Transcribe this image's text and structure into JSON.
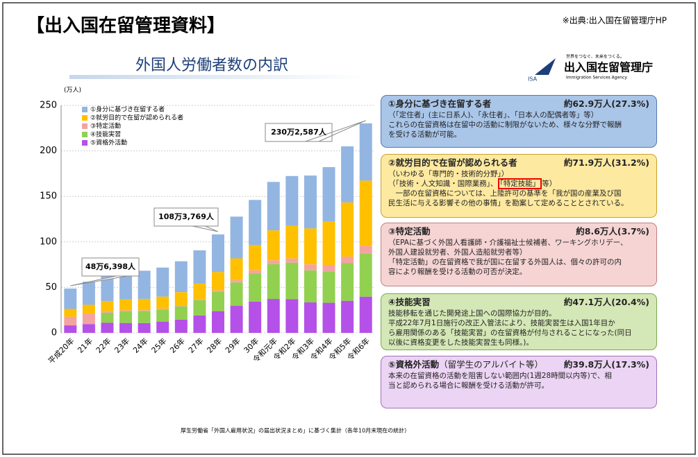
{
  "header": {
    "title": "【出入国在留管理資料】",
    "source": "※出典:出入国在留管理庁HP"
  },
  "slide": {
    "title": "外国人労働者数の内訳",
    "logo_tagline": "世界をつなぐ、未来をつくる。",
    "logo_mark": "ISA",
    "logo_name": "出入国在留管理庁",
    "logo_english": "Immigration Services Agency",
    "footnote": "厚生労働省「外国人雇用状況」の届出状況まとめ」に基づく集計（各年10月末現在の統計）"
  },
  "chart_data": {
    "type": "bar",
    "stacked": true,
    "y_unit": "(万人)",
    "categories": [
      "平成20年",
      "21年",
      "22年",
      "23年",
      "24年",
      "25年",
      "26年",
      "27年",
      "28年",
      "29年",
      "30年",
      "令和元年",
      "令和2年",
      "令和3年",
      "令和4年",
      "令和5年",
      "令和6年"
    ],
    "series": [
      {
        "name": "①身分に基づき在留する者",
        "color": "#93b5e1",
        "values": [
          22.4,
          25.3,
          29.7,
          31.0,
          30.9,
          31.9,
          33.9,
          36.7,
          41.3,
          45.9,
          49.6,
          53.2,
          54.6,
          58.1,
          59.5,
          61.6,
          62.9
        ]
      },
      {
        "name": "②就労目的で在留が認められる者",
        "color": "#ffc000",
        "values": [
          8.5,
          10.0,
          11.1,
          12.1,
          12.4,
          13.3,
          14.7,
          16.7,
          20.1,
          23.8,
          27.7,
          32.9,
          36.0,
          39.5,
          48.0,
          59.6,
          71.9
        ]
      },
      {
        "name": "③特定活動",
        "color": "#f4a3a3",
        "values": [
          9.5,
          11.2,
          1.7,
          0.9,
          0.8,
          0.8,
          0.9,
          1.3,
          1.8,
          2.6,
          3.6,
          4.1,
          4.6,
          6.6,
          7.3,
          7.2,
          8.6
        ]
      },
      {
        "name": "④技能実習",
        "color": "#92d050",
        "values": [
          0,
          0,
          11.1,
          13.0,
          13.4,
          13.6,
          14.6,
          16.8,
          21.1,
          25.8,
          30.8,
          38.4,
          40.2,
          35.2,
          34.3,
          41.3,
          47.1
        ]
      },
      {
        "name": "⑤資格外活動",
        "color": "#b550e8",
        "values": [
          8.3,
          9.7,
          11.1,
          10.9,
          10.8,
          12.2,
          14.6,
          19.2,
          23.9,
          29.7,
          34.4,
          37.3,
          37.0,
          33.5,
          33.1,
          35.3,
          39.8
        ]
      }
    ],
    "ylim": [
      0,
      250
    ],
    "yticks": [
      0,
      50,
      100,
      150,
      200,
      250
    ],
    "legend": "top-left",
    "annotations": [
      "48万6,398人",
      "108万3,769人",
      "230万2,587人"
    ]
  },
  "boxes": [
    {
      "title": "①身分に基づき在留する者",
      "amount": "約62.9万人(27.3%)",
      "color": "#a9c5e8",
      "border": "#5578b0",
      "lines": [
        "（「定住者」(主に日系人)、「永住者」、「日本人の配偶者等」等）",
        "これらの在留資格は在留中の活動に制限がないため、様々な分野で報酬",
        "を受ける活動が可能。"
      ]
    },
    {
      "title": "②就労目的で在留が認められる者",
      "amount": "約71.9万人(31.2%)",
      "color": "#fde9a0",
      "border": "#c9a030",
      "lines": [
        "（いわゆる「専門的・技術的分野」）",
        [
          "（「技術・人文知識・国際業務」、",
          "「特定技能」",
          "等）"
        ],
        "　一部の在留資格については、上陸許可の基準を「我が国の産業及び国",
        "民生活に与える影響その他の事情」を勘案して定めることとされている。"
      ]
    },
    {
      "title": "③特定活動",
      "amount": "約8.6万人(3.7%)",
      "color": "#f6d4d4",
      "border": "#c08080",
      "lines": [
        "（EPAに基づく外国人看護師・介護福祉士候補者、ワーキングホリデー、",
        "外国人建設就労者、外国人造船就労者等）",
        "「特定活動」の在留資格で我が国に在留する外国人は、個々の許可の内",
        "容により報酬を受ける活動の可否が決定。"
      ]
    },
    {
      "title": "④技能実習",
      "amount": "約47.1万人(20.4%)",
      "color": "#d4e7b6",
      "border": "#7fa850",
      "lines": [
        "技能移転を通じた開発途上国への国際協力が目的。",
        "平成22年7月1日施行の改正入管法により、技能実習生は入国1年目か",
        "ら雇用関係のある「技能実習」の在留資格が付与されることになった(同日",
        "以後に資格変更をした技能実習生も同様。)。"
      ]
    },
    {
      "title": "⑤資格外活動",
      "subtitle": "（留学生のアルバイト等）",
      "amount": "約39.8万人(17.3%)",
      "color": "#ecd4f4",
      "border": "#a070b8",
      "lines": [
        "本来の在留資格の活動を阻害しない範囲内(1週28時間以内等)で、相",
        "当と認められる場合に報酬を受ける活動が許可。"
      ]
    }
  ]
}
